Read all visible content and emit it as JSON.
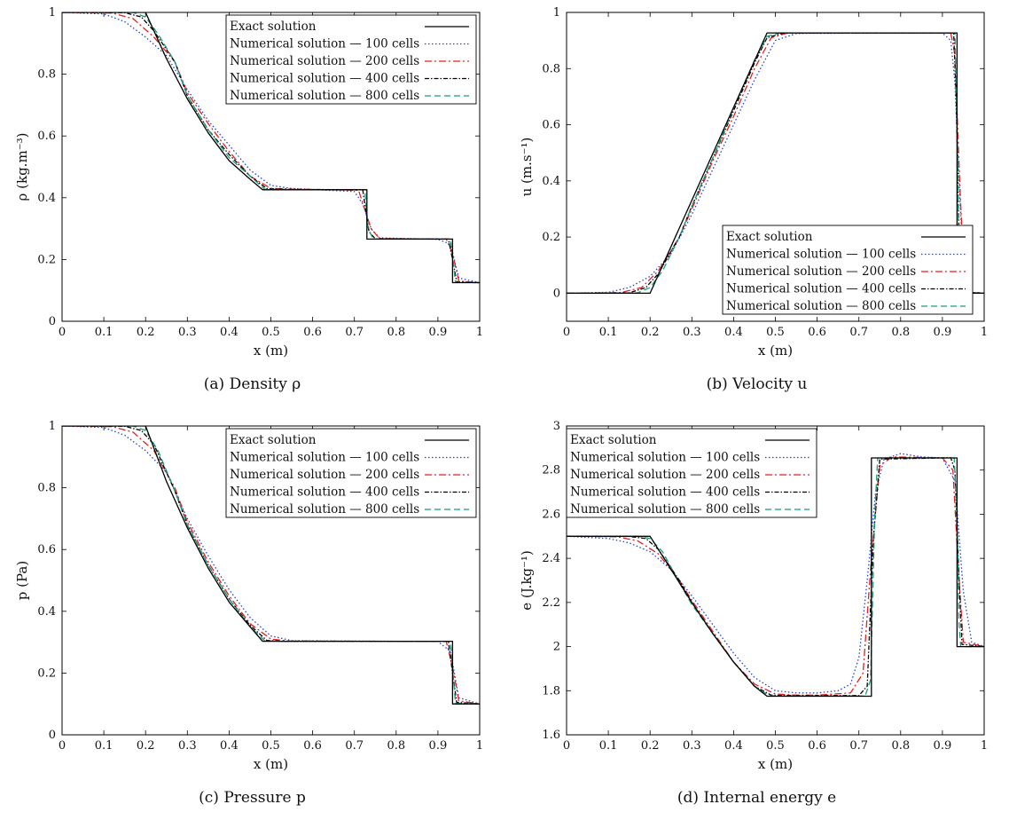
{
  "chart_data": [
    {
      "type": "line",
      "caption": "(a) Density ρ",
      "xlabel": "x (m)",
      "ylabel": "ρ (kg.m⁻³)",
      "xlim": [
        0,
        1
      ],
      "ylim": [
        0,
        1
      ],
      "xticks": [
        "0",
        "0.1",
        "0.2",
        "0.3",
        "0.4",
        "0.5",
        "0.6",
        "0.7",
        "0.8",
        "0.9",
        "1"
      ],
      "yticks": [
        "0",
        "0.2",
        "0.4",
        "0.6",
        "0.8",
        "1"
      ],
      "legend_position": "top-right",
      "series": [
        {
          "name": "Exact solution",
          "color": "#000000",
          "dash": "solid",
          "x": [
            0,
            0.2,
            0.25,
            0.3,
            0.35,
            0.4,
            0.45,
            0.48,
            0.73,
            0.73,
            0.935,
            0.935,
            1
          ],
          "y": [
            1,
            1,
            0.85,
            0.72,
            0.61,
            0.52,
            0.46,
            0.426,
            0.426,
            0.266,
            0.266,
            0.125,
            0.125
          ]
        },
        {
          "name": "Numerical solution — 100 cells",
          "color": "#1f3fdc",
          "dash": "dotted",
          "x": [
            0,
            0.1,
            0.15,
            0.2,
            0.25,
            0.3,
            0.35,
            0.4,
            0.45,
            0.5,
            0.55,
            0.7,
            0.72,
            0.74,
            0.76,
            0.9,
            0.93,
            0.95,
            1
          ],
          "y": [
            1,
            0.995,
            0.97,
            0.92,
            0.86,
            0.75,
            0.65,
            0.57,
            0.49,
            0.44,
            0.43,
            0.42,
            0.38,
            0.3,
            0.27,
            0.265,
            0.25,
            0.14,
            0.125
          ]
        },
        {
          "name": "Numerical solution — 200 cells",
          "color": "#e02020",
          "dash": "dashdot",
          "x": [
            0,
            0.12,
            0.17,
            0.22,
            0.27,
            0.3,
            0.35,
            0.4,
            0.45,
            0.5,
            0.55,
            0.71,
            0.74,
            0.76,
            0.92,
            0.935,
            0.95,
            1
          ],
          "y": [
            1,
            0.998,
            0.98,
            0.92,
            0.84,
            0.74,
            0.64,
            0.55,
            0.47,
            0.43,
            0.428,
            0.424,
            0.3,
            0.268,
            0.266,
            0.22,
            0.13,
            0.125
          ]
        },
        {
          "name": "Numerical solution — 400 cells",
          "color": "#000000",
          "dash": "dashdotfine",
          "x": [
            0,
            0.15,
            0.19,
            0.22,
            0.27,
            0.3,
            0.35,
            0.4,
            0.45,
            0.49,
            0.55,
            0.72,
            0.735,
            0.75,
            0.925,
            0.935,
            0.945,
            1
          ],
          "y": [
            1,
            0.999,
            0.985,
            0.94,
            0.84,
            0.73,
            0.62,
            0.54,
            0.47,
            0.43,
            0.427,
            0.426,
            0.29,
            0.267,
            0.266,
            0.2,
            0.128,
            0.125
          ]
        },
        {
          "name": "Numerical solution — 800 cells",
          "color": "#179c7d",
          "dash": "dashed",
          "x": [
            0,
            0.17,
            0.2,
            0.23,
            0.27,
            0.3,
            0.35,
            0.4,
            0.45,
            0.485,
            0.55,
            0.725,
            0.733,
            0.745,
            0.93,
            0.936,
            0.942,
            1
          ],
          "y": [
            1,
            1,
            0.985,
            0.93,
            0.84,
            0.73,
            0.62,
            0.53,
            0.47,
            0.428,
            0.426,
            0.426,
            0.3,
            0.266,
            0.266,
            0.2,
            0.126,
            0.125
          ]
        }
      ]
    },
    {
      "type": "line",
      "caption": "(b) Velocity u",
      "xlabel": "x (m)",
      "ylabel": "u (m.s⁻¹)",
      "xlim": [
        0,
        1
      ],
      "ylim": [
        -0.1,
        1
      ],
      "xticks": [
        "0",
        "0.1",
        "0.2",
        "0.3",
        "0.4",
        "0.5",
        "0.6",
        "0.7",
        "0.8",
        "0.9",
        "1"
      ],
      "yticks": [
        "0",
        "0.2",
        "0.4",
        "0.6",
        "0.8",
        "1"
      ],
      "legend_position": "bottom-right",
      "series": [
        {
          "name": "Exact solution",
          "color": "#000000",
          "dash": "solid",
          "x": [
            0,
            0.2,
            0.48,
            0.935,
            0.935,
            1
          ],
          "y": [
            0,
            0,
            0.927,
            0.927,
            0,
            0
          ]
        },
        {
          "name": "Numerical solution — 100 cells",
          "color": "#1f3fdc",
          "dash": "dotted",
          "x": [
            0,
            0.1,
            0.15,
            0.2,
            0.25,
            0.3,
            0.35,
            0.4,
            0.45,
            0.5,
            0.55,
            0.9,
            0.92,
            0.93,
            0.94,
            0.95,
            0.97,
            1
          ],
          "y": [
            0,
            0.003,
            0.02,
            0.06,
            0.14,
            0.28,
            0.44,
            0.6,
            0.76,
            0.9,
            0.925,
            0.927,
            0.9,
            0.75,
            0.4,
            0.1,
            0.003,
            0
          ]
        },
        {
          "name": "Numerical solution — 200 cells",
          "color": "#e02020",
          "dash": "dashdot",
          "x": [
            0,
            0.13,
            0.18,
            0.22,
            0.27,
            0.3,
            0.35,
            0.4,
            0.45,
            0.49,
            0.53,
            0.92,
            0.93,
            0.94,
            0.95,
            0.96,
            1
          ],
          "y": [
            0,
            0.002,
            0.02,
            0.08,
            0.2,
            0.3,
            0.47,
            0.63,
            0.8,
            0.91,
            0.927,
            0.927,
            0.85,
            0.45,
            0.1,
            0.003,
            0
          ]
        },
        {
          "name": "Numerical solution — 400 cells",
          "color": "#000000",
          "dash": "dashdotfine",
          "x": [
            0,
            0.15,
            0.19,
            0.22,
            0.27,
            0.3,
            0.35,
            0.4,
            0.45,
            0.48,
            0.52,
            0.927,
            0.933,
            0.94,
            0.947,
            1
          ],
          "y": [
            0,
            0.001,
            0.02,
            0.07,
            0.2,
            0.31,
            0.48,
            0.65,
            0.82,
            0.91,
            0.927,
            0.927,
            0.7,
            0.2,
            0.005,
            0
          ]
        },
        {
          "name": "Numerical solution — 800 cells",
          "color": "#179c7d",
          "dash": "dashed",
          "x": [
            0,
            0.17,
            0.2,
            0.23,
            0.27,
            0.3,
            0.35,
            0.4,
            0.45,
            0.48,
            0.51,
            0.93,
            0.935,
            0.94,
            0.944,
            1
          ],
          "y": [
            0,
            0.001,
            0.02,
            0.08,
            0.2,
            0.31,
            0.48,
            0.66,
            0.83,
            0.915,
            0.927,
            0.927,
            0.6,
            0.1,
            0.002,
            0
          ]
        }
      ]
    },
    {
      "type": "line",
      "caption": "(c) Pressure p",
      "xlabel": "x (m)",
      "ylabel": "p (Pa)",
      "xlim": [
        0,
        1
      ],
      "ylim": [
        0,
        1
      ],
      "xticks": [
        "0",
        "0.1",
        "0.2",
        "0.3",
        "0.4",
        "0.5",
        "0.6",
        "0.7",
        "0.8",
        "0.9",
        "1"
      ],
      "yticks": [
        "0",
        "0.2",
        "0.4",
        "0.6",
        "0.8",
        "1"
      ],
      "legend_position": "top-right",
      "series": [
        {
          "name": "Exact solution",
          "color": "#000000",
          "dash": "solid",
          "x": [
            0,
            0.2,
            0.25,
            0.3,
            0.35,
            0.4,
            0.45,
            0.48,
            0.935,
            0.935,
            1
          ],
          "y": [
            1,
            1,
            0.82,
            0.67,
            0.54,
            0.43,
            0.35,
            0.303,
            0.303,
            0.1,
            0.1
          ]
        },
        {
          "name": "Numerical solution — 100 cells",
          "color": "#1f3fdc",
          "dash": "dotted",
          "x": [
            0,
            0.1,
            0.15,
            0.2,
            0.25,
            0.3,
            0.35,
            0.4,
            0.45,
            0.5,
            0.55,
            0.9,
            0.93,
            0.95,
            1
          ],
          "y": [
            1,
            0.995,
            0.97,
            0.92,
            0.85,
            0.7,
            0.58,
            0.47,
            0.38,
            0.32,
            0.305,
            0.302,
            0.27,
            0.12,
            0.1
          ]
        },
        {
          "name": "Numerical solution — 200 cells",
          "color": "#e02020",
          "dash": "dashdot",
          "x": [
            0,
            0.12,
            0.17,
            0.22,
            0.27,
            0.3,
            0.35,
            0.4,
            0.45,
            0.5,
            0.54,
            0.92,
            0.935,
            0.95,
            1
          ],
          "y": [
            1,
            0.998,
            0.98,
            0.92,
            0.8,
            0.69,
            0.56,
            0.45,
            0.36,
            0.31,
            0.304,
            0.302,
            0.22,
            0.11,
            0.1
          ]
        },
        {
          "name": "Numerical solution — 400 cells",
          "color": "#000000",
          "dash": "dashdotfine",
          "x": [
            0,
            0.15,
            0.19,
            0.22,
            0.27,
            0.3,
            0.35,
            0.4,
            0.45,
            0.49,
            0.53,
            0.925,
            0.935,
            0.945,
            1
          ],
          "y": [
            1,
            0.999,
            0.985,
            0.94,
            0.79,
            0.68,
            0.55,
            0.44,
            0.355,
            0.306,
            0.303,
            0.303,
            0.2,
            0.105,
            0.1
          ]
        },
        {
          "name": "Numerical solution — 800 cells",
          "color": "#179c7d",
          "dash": "dashed",
          "x": [
            0,
            0.17,
            0.2,
            0.23,
            0.27,
            0.3,
            0.35,
            0.4,
            0.45,
            0.485,
            0.52,
            0.93,
            0.936,
            0.942,
            1
          ],
          "y": [
            1,
            1,
            0.985,
            0.92,
            0.79,
            0.68,
            0.55,
            0.44,
            0.35,
            0.305,
            0.303,
            0.303,
            0.2,
            0.102,
            0.1
          ]
        }
      ]
    },
    {
      "type": "line",
      "caption": "(d) Internal energy e",
      "xlabel": "x (m)",
      "ylabel": "e (J.kg⁻¹)",
      "xlim": [
        0,
        1
      ],
      "ylim": [
        1.6,
        3
      ],
      "xticks": [
        "0",
        "0.1",
        "0.2",
        "0.3",
        "0.4",
        "0.5",
        "0.6",
        "0.7",
        "0.8",
        "0.9",
        "1"
      ],
      "yticks": [
        "1.6",
        "1.8",
        "2",
        "2.2",
        "2.4",
        "2.6",
        "2.8",
        "3"
      ],
      "legend_position": "top-left",
      "series": [
        {
          "name": "Exact solution",
          "color": "#000000",
          "dash": "solid",
          "x": [
            0,
            0.2,
            0.25,
            0.3,
            0.35,
            0.4,
            0.45,
            0.48,
            0.73,
            0.73,
            0.935,
            0.935,
            1
          ],
          "y": [
            2.5,
            2.5,
            2.35,
            2.2,
            2.06,
            1.93,
            1.82,
            1.775,
            1.775,
            2.855,
            2.855,
            2.0,
            2.0
          ]
        },
        {
          "name": "Numerical solution — 100 cells",
          "color": "#1f3fdc",
          "dash": "dotted",
          "x": [
            0,
            0.1,
            0.15,
            0.2,
            0.25,
            0.3,
            0.35,
            0.4,
            0.45,
            0.5,
            0.55,
            0.6,
            0.65,
            0.68,
            0.7,
            0.72,
            0.74,
            0.76,
            0.8,
            0.85,
            0.9,
            0.93,
            0.95,
            0.97,
            1
          ],
          "y": [
            2.5,
            2.49,
            2.47,
            2.43,
            2.35,
            2.23,
            2.1,
            1.97,
            1.86,
            1.8,
            1.79,
            1.79,
            1.8,
            1.83,
            1.95,
            2.3,
            2.7,
            2.85,
            2.875,
            2.86,
            2.855,
            2.75,
            2.25,
            2.02,
            2.0
          ]
        },
        {
          "name": "Numerical solution — 200 cells",
          "color": "#e02020",
          "dash": "dashdot",
          "x": [
            0,
            0.12,
            0.17,
            0.22,
            0.27,
            0.3,
            0.35,
            0.4,
            0.45,
            0.5,
            0.55,
            0.6,
            0.68,
            0.71,
            0.73,
            0.75,
            0.78,
            0.9,
            0.925,
            0.94,
            0.95,
            1
          ],
          "y": [
            2.5,
            2.498,
            2.48,
            2.42,
            2.3,
            2.21,
            2.07,
            1.93,
            1.83,
            1.785,
            1.78,
            1.78,
            1.79,
            1.88,
            2.4,
            2.82,
            2.86,
            2.855,
            2.8,
            2.3,
            2.02,
            2.0
          ]
        },
        {
          "name": "Numerical solution — 400 cells",
          "color": "#000000",
          "dash": "dashdotfine",
          "x": [
            0,
            0.15,
            0.19,
            0.22,
            0.27,
            0.3,
            0.35,
            0.4,
            0.45,
            0.49,
            0.55,
            0.7,
            0.72,
            0.735,
            0.75,
            0.92,
            0.93,
            0.94,
            0.947,
            1
          ],
          "y": [
            2.5,
            2.499,
            2.49,
            2.44,
            2.3,
            2.2,
            2.06,
            1.93,
            1.82,
            1.78,
            1.778,
            1.778,
            1.82,
            2.5,
            2.85,
            2.856,
            2.8,
            2.3,
            2.01,
            2.0
          ]
        },
        {
          "name": "Numerical solution — 800 cells",
          "color": "#179c7d",
          "dash": "dashed",
          "x": [
            0,
            0.17,
            0.2,
            0.23,
            0.27,
            0.3,
            0.35,
            0.4,
            0.45,
            0.485,
            0.55,
            0.715,
            0.728,
            0.738,
            0.745,
            0.928,
            0.935,
            0.94,
            0.944,
            1
          ],
          "y": [
            2.5,
            2.5,
            2.49,
            2.43,
            2.29,
            2.19,
            2.06,
            1.93,
            1.82,
            1.777,
            1.776,
            1.776,
            1.85,
            2.6,
            2.855,
            2.855,
            2.6,
            2.1,
            2.0,
            2.0
          ]
        }
      ]
    }
  ]
}
